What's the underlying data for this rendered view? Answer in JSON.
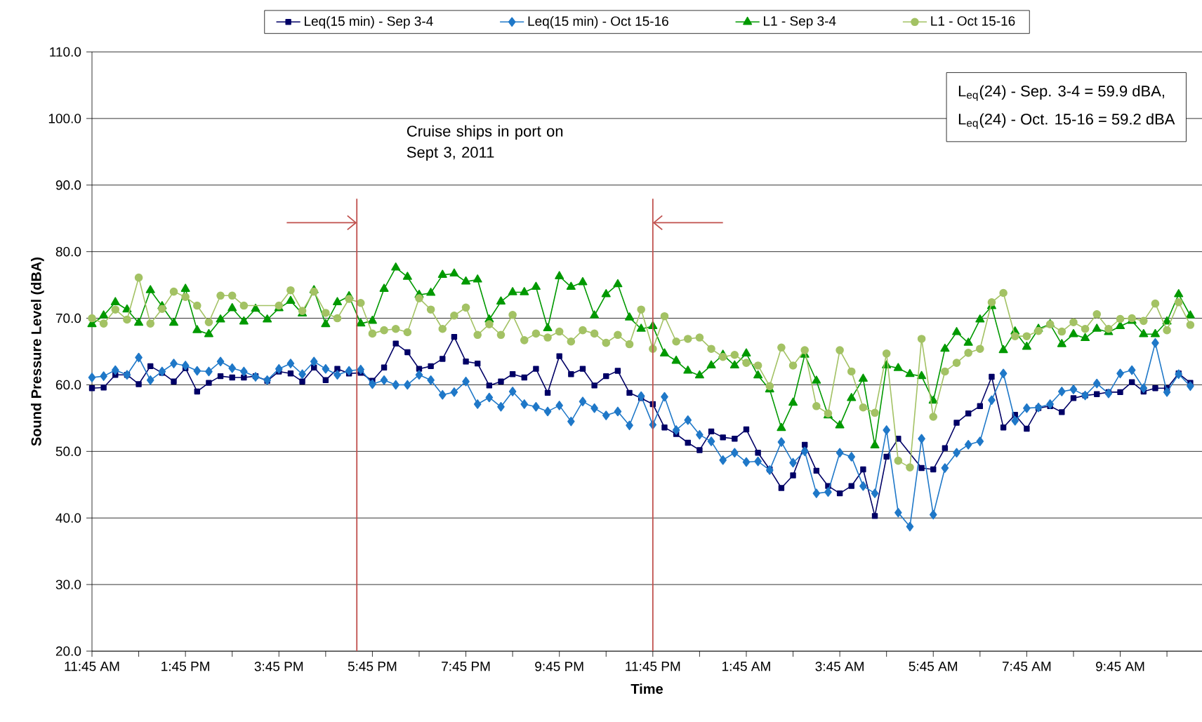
{
  "chart_data": {
    "type": "line",
    "xlabel": "Time",
    "ylabel": "Sound Pressure Level (dBA)",
    "x": [
      "2011-09-03T11:45",
      "2011-09-03T12:00",
      "2011-09-03T12:15",
      "2011-09-03T12:30",
      "2011-09-03T12:45",
      "2011-09-03T13:00",
      "2011-09-03T13:15",
      "2011-09-03T13:30",
      "2011-09-03T13:45",
      "2011-09-03T14:00",
      "2011-09-03T14:15",
      "2011-09-03T14:30",
      "2011-09-03T14:45",
      "2011-09-03T15:00",
      "2011-09-03T15:15",
      "2011-09-03T15:30",
      "2011-09-03T15:45",
      "2011-09-03T16:00",
      "2011-09-03T16:15",
      "2011-09-03T16:30",
      "2011-09-03T16:45",
      "2011-09-03T17:00",
      "2011-09-03T17:15",
      "2011-09-03T17:30",
      "2011-09-03T17:45",
      "2011-09-03T18:00",
      "2011-09-03T18:15",
      "2011-09-03T18:30",
      "2011-09-03T18:45",
      "2011-09-03T19:00",
      "2011-09-03T19:15",
      "2011-09-03T19:30",
      "2011-09-03T19:45",
      "2011-09-03T20:00",
      "2011-09-03T20:15",
      "2011-09-03T20:30",
      "2011-09-03T20:45",
      "2011-09-03T21:00",
      "2011-09-03T21:15",
      "2011-09-03T21:30",
      "2011-09-03T21:45",
      "2011-09-03T22:00",
      "2011-09-03T22:15",
      "2011-09-03T22:30",
      "2011-09-03T22:45",
      "2011-09-03T23:00",
      "2011-09-03T23:15",
      "2011-09-03T23:30",
      "2011-09-03T23:45",
      "2011-09-04T00:00",
      "2011-09-04T00:15",
      "2011-09-04T00:30",
      "2011-09-04T00:45",
      "2011-09-04T01:00",
      "2011-09-04T01:15",
      "2011-09-04T01:30",
      "2011-09-04T01:45",
      "2011-09-04T02:00",
      "2011-09-04T02:15",
      "2011-09-04T02:30",
      "2011-09-04T02:45",
      "2011-09-04T03:00",
      "2011-09-04T03:15",
      "2011-09-04T03:30",
      "2011-09-04T03:45",
      "2011-09-04T04:00",
      "2011-09-04T04:15",
      "2011-09-04T04:30",
      "2011-09-04T04:45",
      "2011-09-04T05:00",
      "2011-09-04T05:15",
      "2011-09-04T05:30",
      "2011-09-04T05:45",
      "2011-09-04T06:00",
      "2011-09-04T06:15",
      "2011-09-04T06:30",
      "2011-09-04T06:45",
      "2011-09-04T07:00",
      "2011-09-04T07:15",
      "2011-09-04T07:30",
      "2011-09-04T07:45",
      "2011-09-04T08:00",
      "2011-09-04T08:15",
      "2011-09-04T08:30",
      "2011-09-04T08:45",
      "2011-09-04T09:00",
      "2011-09-04T09:15",
      "2011-09-04T09:30",
      "2011-09-04T09:45",
      "2011-09-04T10:00",
      "2011-09-04T10:15",
      "2011-09-04T10:30",
      "2011-09-04T10:45",
      "2011-09-04T11:00",
      "2011-09-04T11:15"
    ],
    "series": [
      {
        "name": "Leq(15 min) - Sep 3-4",
        "color": "#000066",
        "marker": "square",
        "values": [
          59.5,
          59.6,
          61.5,
          61.5,
          60.1,
          62.8,
          61.8,
          60.5,
          62.5,
          59.0,
          60.3,
          61.3,
          61.1,
          61.1,
          61.3,
          60.6,
          62.0,
          61.7,
          60.5,
          62.6,
          60.7,
          62.4,
          61.7,
          61.8,
          60.6,
          62.6,
          66.2,
          64.9,
          62.4,
          62.8,
          63.9,
          67.2,
          63.5,
          63.2,
          59.9,
          60.5,
          61.6,
          61.1,
          62.4,
          58.8,
          64.3,
          61.6,
          62.4,
          59.9,
          61.3,
          62.1,
          58.8,
          58.0,
          57.1,
          53.6,
          52.6,
          51.3,
          50.2,
          53.0,
          52.1,
          51.9,
          53.3,
          49.8,
          47.3,
          44.5,
          46.4,
          51.0,
          47.1,
          44.8,
          43.7,
          44.8,
          47.3,
          40.3,
          49.2,
          51.9,
          null,
          47.5,
          47.3,
          50.5,
          54.3,
          55.7,
          56.8,
          61.2,
          53.6,
          55.5,
          53.4,
          56.5,
          56.8,
          55.9,
          58.0,
          58.4,
          58.6,
          58.9,
          58.9,
          60.4,
          59.0,
          59.5,
          59.5,
          61.7,
          60.3
        ]
      },
      {
        "name": "Leq(15 min) - Oct 15-16",
        "color": "#1f78c8",
        "marker": "diamond",
        "values": [
          61.1,
          61.3,
          62.2,
          61.5,
          64.1,
          60.7,
          62.0,
          63.2,
          62.9,
          62.1,
          62.0,
          63.5,
          62.5,
          62.0,
          61.2,
          60.7,
          62.4,
          63.2,
          61.6,
          63.5,
          62.4,
          61.5,
          62.1,
          62.3,
          60.1,
          60.7,
          60.0,
          60.0,
          61.5,
          60.7,
          58.5,
          58.9,
          60.5,
          57.1,
          58.1,
          56.7,
          59.0,
          57.1,
          56.7,
          56.0,
          56.9,
          54.5,
          57.5,
          56.5,
          55.4,
          56.0,
          53.9,
          58.3,
          54.0,
          58.2,
          53.2,
          54.7,
          52.5,
          51.5,
          48.7,
          49.8,
          48.4,
          48.5,
          47.2,
          51.4,
          48.3,
          50.0,
          43.7,
          43.9,
          49.8,
          49.2,
          44.8,
          43.7,
          53.2,
          40.8,
          38.7,
          51.9,
          40.5,
          47.5,
          49.8,
          51.0,
          51.5,
          57.7,
          61.7,
          54.6,
          56.5,
          56.6,
          57.1,
          59.0,
          59.3,
          58.4,
          60.2,
          58.7,
          61.7,
          62.2,
          59.5,
          66.3,
          58.9,
          61.6,
          59.8
        ]
      },
      {
        "name": "L1 - Sep 3-4",
        "color": "#009900",
        "marker": "triangle",
        "values": [
          69.1,
          70.4,
          72.4,
          71.3,
          69.3,
          74.2,
          71.8,
          69.3,
          74.4,
          68.2,
          67.6,
          69.8,
          71.5,
          69.5,
          71.4,
          69.8,
          71.5,
          72.6,
          70.7,
          74.2,
          69.1,
          72.4,
          73.3,
          69.2,
          69.6,
          74.4,
          77.6,
          76.2,
          73.5,
          73.8,
          76.5,
          76.7,
          75.5,
          75.8,
          69.8,
          72.5,
          73.9,
          73.9,
          74.7,
          68.5,
          76.3,
          74.7,
          75.4,
          70.4,
          73.6,
          75.1,
          70.1,
          68.4,
          68.8,
          64.7,
          63.6,
          62.1,
          61.4,
          62.9,
          64.5,
          62.9,
          64.7,
          61.4,
          59.3,
          53.5,
          57.3,
          64.5,
          60.6,
          55.4,
          53.9,
          58.0,
          60.9,
          50.9,
          62.9,
          62.5,
          61.6,
          61.3,
          57.6,
          65.4,
          67.9,
          66.3,
          69.8,
          71.8,
          65.2,
          68.0,
          65.7,
          68.4,
          69.1,
          66.1,
          67.6,
          67.0,
          68.4,
          67.9,
          68.8,
          69.6,
          67.6,
          67.6,
          69.5,
          73.6,
          70.4
        ]
      },
      {
        "name": "L1 - Oct 15-16",
        "color": "#a3c264",
        "marker": "circle",
        "values": [
          70.0,
          69.2,
          71.3,
          69.8,
          76.1,
          69.2,
          71.4,
          74.0,
          73.2,
          71.9,
          69.4,
          73.4,
          73.4,
          71.9,
          null,
          null,
          71.9,
          74.2,
          71.1,
          74.0,
          70.8,
          70.0,
          72.9,
          72.3,
          67.7,
          68.2,
          68.4,
          67.9,
          73.0,
          71.3,
          68.4,
          70.4,
          71.6,
          67.5,
          69.1,
          67.5,
          70.5,
          66.7,
          67.7,
          67.1,
          68.0,
          66.5,
          68.2,
          67.7,
          66.3,
          67.5,
          66.1,
          71.3,
          65.4,
          70.3,
          66.5,
          66.9,
          67.1,
          65.4,
          64.2,
          64.5,
          63.3,
          62.9,
          59.8,
          65.6,
          62.9,
          65.2,
          56.8,
          55.7,
          65.2,
          62.0,
          56.6,
          55.8,
          64.7,
          48.6,
          47.6,
          66.9,
          55.2,
          62.0,
          63.3,
          64.8,
          65.4,
          72.4,
          73.8,
          67.3,
          67.3,
          68.1,
          69.1,
          68.0,
          69.4,
          68.4,
          70.6,
          68.4,
          69.9,
          70.0,
          69.6,
          72.2,
          68.2,
          72.4,
          69.0
        ]
      }
    ],
    "xlim": [
      "2011-09-03T11:45",
      "2011-09-04T11:30"
    ],
    "xticks": [
      {
        "value": "2011-09-03T11:45",
        "label": "11:45 AM"
      },
      {
        "value": "2011-09-03T12:45",
        "label": null
      },
      {
        "value": "2011-09-03T13:45",
        "label": "1:45 PM"
      },
      {
        "value": "2011-09-03T14:45",
        "label": null
      },
      {
        "value": "2011-09-03T15:45",
        "label": "3:45 PM"
      },
      {
        "value": "2011-09-03T16:45",
        "label": null
      },
      {
        "value": "2011-09-03T17:45",
        "label": "5:45 PM"
      },
      {
        "value": "2011-09-03T18:45",
        "label": null
      },
      {
        "value": "2011-09-03T19:45",
        "label": "7:45 PM"
      },
      {
        "value": "2011-09-03T20:45",
        "label": null
      },
      {
        "value": "2011-09-03T21:45",
        "label": "9:45 PM"
      },
      {
        "value": "2011-09-03T22:45",
        "label": null
      },
      {
        "value": "2011-09-03T23:45",
        "label": "11:45 PM"
      },
      {
        "value": "2011-09-04T00:45",
        "label": null
      },
      {
        "value": "2011-09-04T01:45",
        "label": "1:45 AM"
      },
      {
        "value": "2011-09-04T02:45",
        "label": null
      },
      {
        "value": "2011-09-04T03:45",
        "label": "3:45 AM"
      },
      {
        "value": "2011-09-04T04:45",
        "label": null
      },
      {
        "value": "2011-09-04T05:45",
        "label": "5:45 AM"
      },
      {
        "value": "2011-09-04T06:45",
        "label": null
      },
      {
        "value": "2011-09-04T07:45",
        "label": "7:45 AM"
      },
      {
        "value": "2011-09-04T08:45",
        "label": null
      },
      {
        "value": "2011-09-04T09:45",
        "label": "9:45 AM"
      },
      {
        "value": "2011-09-04T10:45",
        "label": null
      }
    ],
    "ylim": [
      20,
      110
    ],
    "yticks": [
      {
        "value": 20,
        "label": "20.0"
      },
      {
        "value": 30,
        "label": "30.0"
      },
      {
        "value": 40,
        "label": "40.0"
      },
      {
        "value": 50,
        "label": "50.0"
      },
      {
        "value": 60,
        "label": "60.0"
      },
      {
        "value": 70,
        "label": "70.0"
      },
      {
        "value": 80,
        "label": "80.0"
      },
      {
        "value": 90,
        "label": "90.0"
      },
      {
        "value": 100,
        "label": "100.0"
      },
      {
        "value": 110,
        "label": "110.0"
      }
    ],
    "grid": "y",
    "legend": "top",
    "ref_lines": [
      {
        "axis": "x",
        "value": "2011-09-03T17:25",
        "color": "#c0504d"
      },
      {
        "axis": "x",
        "value": "2011-09-03T23:45",
        "color": "#c0504d"
      }
    ],
    "annotations": [
      "Cruise ships in port on Sept 3, 2011",
      "L$_{eq}$(24) - Sep. 3-4 = 59.9  dBA,",
      "L$_{eq}$(24)  - Oct. 15-16 = 59.2 dBA"
    ]
  }
}
